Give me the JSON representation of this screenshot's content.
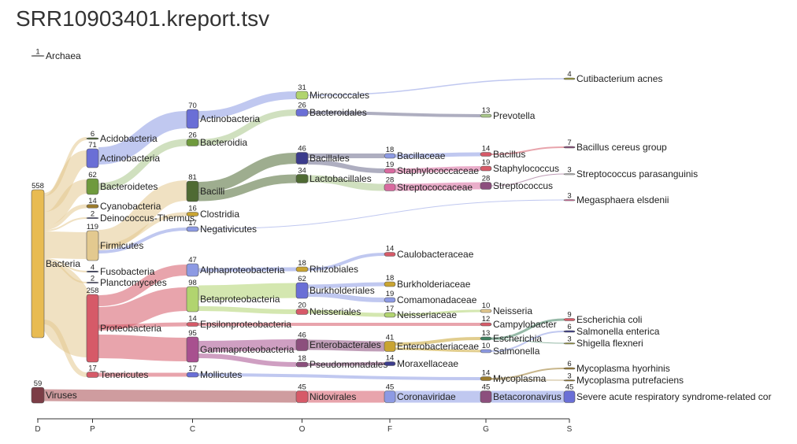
{
  "title": "SRR10903401.kreport.tsv",
  "axis": {
    "ranks": [
      "D",
      "P",
      "C",
      "O",
      "F",
      "G",
      "S"
    ]
  },
  "colors": {
    "axis": "#333333",
    "yellow": "#e8bb52",
    "blue": "#6a6fd6",
    "green": "#6f9a3d",
    "brown": "#9a7a2c",
    "olive": "#9a9a38",
    "tan": "#e3c98f",
    "mauve": "#8c4f7d",
    "red": "#d65a68",
    "lime": "#b1d46f",
    "purple": "#3c3c8c",
    "pink": "#d86a9f",
    "gold": "#c9a432",
    "dkgreen": "#4f6a33",
    "periwinkle": "#8d9ae3",
    "orchid": "#a8508f",
    "brick": "#a84b50",
    "darkred": "#7c3d46",
    "teal": "#3f7f5f",
    "grey": "#bbbbbb",
    "sage": "#a9c68a",
    "navy": "#3f456e",
    "slate": "#6b6b8c"
  },
  "nodes": [
    {
      "name": "Archaea",
      "count": "1"
    },
    {
      "name": "Bacteria",
      "count": "558"
    },
    {
      "name": "Viruses",
      "count": "59"
    },
    {
      "name": "Acidobacteria",
      "count": "6"
    },
    {
      "name": "Actinobacteria",
      "count": "71"
    },
    {
      "name": "Bacteroidetes",
      "count": "62"
    },
    {
      "name": "Cyanobacteria",
      "count": "14"
    },
    {
      "name": "Deinococcus-Thermus",
      "count": "2"
    },
    {
      "name": "Firmicutes",
      "count": "119"
    },
    {
      "name": "Fusobacteria",
      "count": "4"
    },
    {
      "name": "Planctomycetes",
      "count": "2"
    },
    {
      "name": "Proteobacteria",
      "count": "258"
    },
    {
      "name": "Tenericutes",
      "count": "17"
    },
    {
      "name": "Actinobacteria",
      "count": "70"
    },
    {
      "name": "Bacteroidia",
      "count": "26"
    },
    {
      "name": "Bacilli",
      "count": "81"
    },
    {
      "name": "Clostridia",
      "count": "16"
    },
    {
      "name": "Negativicutes",
      "count": "17"
    },
    {
      "name": "Alphaproteobacteria",
      "count": "47"
    },
    {
      "name": "Betaproteobacteria",
      "count": "98"
    },
    {
      "name": "Epsilonproteobacteria",
      "count": "14"
    },
    {
      "name": "Gammaproteobacteria",
      "count": "95"
    },
    {
      "name": "Mollicutes",
      "count": "17"
    },
    {
      "name": "Micrococcales",
      "count": "31"
    },
    {
      "name": "Bacteroidales",
      "count": "26"
    },
    {
      "name": "Bacillales",
      "count": "46"
    },
    {
      "name": "Lactobacillales",
      "count": "34"
    },
    {
      "name": "Rhizobiales",
      "count": "18"
    },
    {
      "name": "Burkholderiales",
      "count": "62"
    },
    {
      "name": "Neisseriales",
      "count": "20"
    },
    {
      "name": "Enterobacterales",
      "count": "46"
    },
    {
      "name": "Pseudomonadales",
      "count": "18"
    },
    {
      "name": "Nidovirales",
      "count": "45"
    },
    {
      "name": "Bacillaceae",
      "count": "18"
    },
    {
      "name": "Staphylococcaceae",
      "count": "19"
    },
    {
      "name": "Streptococcaceae",
      "count": "28"
    },
    {
      "name": "Caulobacteraceae",
      "count": "14"
    },
    {
      "name": "Burkholderiaceae",
      "count": "18"
    },
    {
      "name": "Comamonadaceae",
      "count": "19"
    },
    {
      "name": "Neisseriaceae",
      "count": "17"
    },
    {
      "name": "Enterobacteriaceae",
      "count": "41"
    },
    {
      "name": "Moraxellaceae",
      "count": "14"
    },
    {
      "name": "Coronaviridae",
      "count": "45"
    },
    {
      "name": "Prevotella",
      "count": "13"
    },
    {
      "name": "Bacillus",
      "count": "14"
    },
    {
      "name": "Staphylococcus",
      "count": "19"
    },
    {
      "name": "Streptococcus",
      "count": "28"
    },
    {
      "name": "Neisseria",
      "count": "10"
    },
    {
      "name": "Campylobacter",
      "count": "12"
    },
    {
      "name": "Escherichia",
      "count": "13"
    },
    {
      "name": "Salmonella",
      "count": "10"
    },
    {
      "name": "Mycoplasma",
      "count": "14"
    },
    {
      "name": "Betacoronavirus",
      "count": "45"
    },
    {
      "name": "Cutibacterium acnes",
      "count": "4"
    },
    {
      "name": "Bacillus cereus group",
      "count": "7"
    },
    {
      "name": "Streptococcus parasanguinis",
      "count": "3"
    },
    {
      "name": "Megasphaera elsdenii",
      "count": "3"
    },
    {
      "name": "Escherichia coli",
      "count": "9"
    },
    {
      "name": "Salmonella enterica",
      "count": "6"
    },
    {
      "name": "Shigella flexneri",
      "count": "3"
    },
    {
      "name": "Mycoplasma hyorhinis",
      "count": "6"
    },
    {
      "name": "Mycoplasma putrefaciens",
      "count": "3"
    },
    {
      "name": "Severe acute respiratory syndrome-related cor",
      "count": "45"
    }
  ]
}
